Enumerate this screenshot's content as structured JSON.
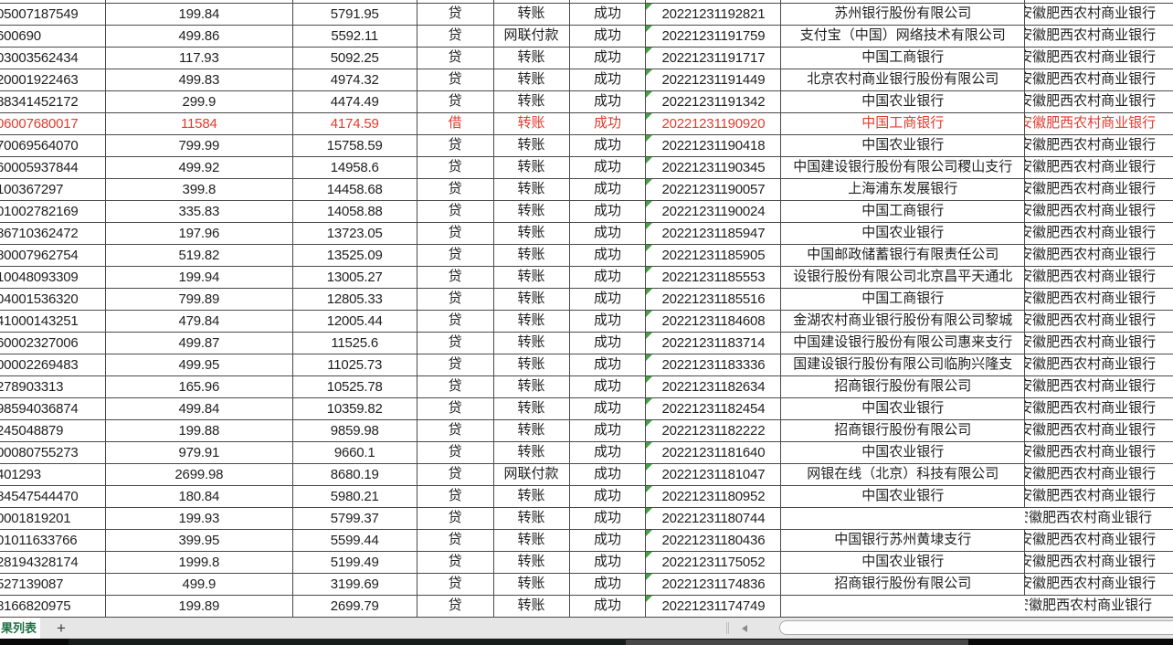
{
  "table": {
    "column_names": [
      "account",
      "amount",
      "balance",
      "debit_credit",
      "tx_type",
      "status",
      "timestamp",
      "counterparty_bank",
      "owner_bank"
    ],
    "owner_bank": "安徽肥西农村商业银行",
    "red_color": "#e23b2e",
    "error_triangle_color": "#44a244",
    "grid_line_color": "#4a4a4a",
    "rows": [
      {
        "account": "05007187549",
        "amount": "199.84",
        "balance": "5791.95",
        "dc": "贷",
        "type": "转账",
        "status": "成功",
        "time": "20221231192821",
        "bank": "苏州银行股份有限公司",
        "red": false
      },
      {
        "account": "600690",
        "amount": "499.86",
        "balance": "5592.11",
        "dc": "贷",
        "type": "网联付款",
        "status": "成功",
        "time": "20221231191759",
        "bank": "支付宝（中国）网络技术有限公司",
        "red": false
      },
      {
        "account": "03003562434",
        "amount": "117.93",
        "balance": "5092.25",
        "dc": "贷",
        "type": "转账",
        "status": "成功",
        "time": "20221231191717",
        "bank": "中国工商银行",
        "red": false
      },
      {
        "account": "20001922463",
        "amount": "499.83",
        "balance": "4974.32",
        "dc": "贷",
        "type": "转账",
        "status": "成功",
        "time": "20221231191449",
        "bank": "北京农村商业银行股份有限公司",
        "red": false
      },
      {
        "account": "88341452172",
        "amount": "299.9",
        "balance": "4474.49",
        "dc": "贷",
        "type": "转账",
        "status": "成功",
        "time": "20221231191342",
        "bank": "中国农业银行",
        "red": false
      },
      {
        "account": "06007680017",
        "amount": "11584",
        "balance": "4174.59",
        "dc": "借",
        "type": "转账",
        "status": "成功",
        "time": "20221231190920",
        "bank": "中国工商银行",
        "red": true
      },
      {
        "account": "70069564070",
        "amount": "799.99",
        "balance": "15758.59",
        "dc": "贷",
        "type": "转账",
        "status": "成功",
        "time": "20221231190418",
        "bank": "中国农业银行",
        "red": false
      },
      {
        "account": "60005937844",
        "amount": "499.92",
        "balance": "14958.6",
        "dc": "贷",
        "type": "转账",
        "status": "成功",
        "time": "20221231190345",
        "bank": "中国建设银行股份有限公司稷山支行",
        "red": false
      },
      {
        "account": "100367297",
        "amount": "399.8",
        "balance": "14458.68",
        "dc": "贷",
        "type": "转账",
        "status": "成功",
        "time": "20221231190057",
        "bank": "上海浦东发展银行",
        "red": false
      },
      {
        "account": "01002782169",
        "amount": "335.83",
        "balance": "14058.88",
        "dc": "贷",
        "type": "转账",
        "status": "成功",
        "time": "20221231190024",
        "bank": "中国工商银行",
        "red": false
      },
      {
        "account": "86710362472",
        "amount": "197.96",
        "balance": "13723.05",
        "dc": "贷",
        "type": "转账",
        "status": "成功",
        "time": "20221231185947",
        "bank": "中国农业银行",
        "red": false
      },
      {
        "account": "80007962754",
        "amount": "519.82",
        "balance": "13525.09",
        "dc": "贷",
        "type": "转账",
        "status": "成功",
        "time": "20221231185905",
        "bank": "中国邮政储蓄银行有限责任公司",
        "red": false
      },
      {
        "account": "10048093309",
        "amount": "199.94",
        "balance": "13005.27",
        "dc": "贷",
        "type": "转账",
        "status": "成功",
        "time": "20221231185553",
        "bank": "设银行股份有限公司北京昌平天通北",
        "red": false
      },
      {
        "account": "04001536320",
        "amount": "799.89",
        "balance": "12805.33",
        "dc": "贷",
        "type": "转账",
        "status": "成功",
        "time": "20221231185516",
        "bank": "中国工商银行",
        "red": false
      },
      {
        "account": "41000143251",
        "amount": "479.84",
        "balance": "12005.44",
        "dc": "贷",
        "type": "转账",
        "status": "成功",
        "time": "20221231184608",
        "bank": "金湖农村商业银行股份有限公司黎城",
        "red": false
      },
      {
        "account": "60002327006",
        "amount": "499.87",
        "balance": "11525.6",
        "dc": "贷",
        "type": "转账",
        "status": "成功",
        "time": "20221231183714",
        "bank": "中国建设银行股份有限公司惠来支行",
        "red": false
      },
      {
        "account": "00002269483",
        "amount": "499.95",
        "balance": "11025.73",
        "dc": "贷",
        "type": "转账",
        "status": "成功",
        "time": "20221231183336",
        "bank": "国建设银行股份有限公司临朐兴隆支",
        "red": false
      },
      {
        "account": "278903313",
        "amount": "165.96",
        "balance": "10525.78",
        "dc": "贷",
        "type": "转账",
        "status": "成功",
        "time": "20221231182634",
        "bank": "招商银行股份有限公司",
        "red": false
      },
      {
        "account": "98594036874",
        "amount": "499.84",
        "balance": "10359.82",
        "dc": "贷",
        "type": "转账",
        "status": "成功",
        "time": "20221231182454",
        "bank": "中国农业银行",
        "red": false
      },
      {
        "account": "245048879",
        "amount": "199.88",
        "balance": "9859.98",
        "dc": "贷",
        "type": "转账",
        "status": "成功",
        "time": "20221231182222",
        "bank": "招商银行股份有限公司",
        "red": false
      },
      {
        "account": "00080755273",
        "amount": "979.91",
        "balance": "9660.1",
        "dc": "贷",
        "type": "转账",
        "status": "成功",
        "time": "20221231181640",
        "bank": "中国农业银行",
        "red": false
      },
      {
        "account": "401293",
        "amount": "2699.98",
        "balance": "8680.19",
        "dc": "贷",
        "type": "网联付款",
        "status": "成功",
        "time": "20221231181047",
        "bank": "网银在线（北京）科技有限公司",
        "red": false
      },
      {
        "account": "84547544470",
        "amount": "180.84",
        "balance": "5980.21",
        "dc": "贷",
        "type": "转账",
        "status": "成功",
        "time": "20221231180952",
        "bank": "中国农业银行",
        "red": false
      },
      {
        "account": "0001819201",
        "amount": "199.93",
        "balance": "5799.37",
        "dc": "贷",
        "type": "转账",
        "status": "成功",
        "time": "20221231180744",
        "bank": "",
        "red": false
      },
      {
        "account": "01011633766",
        "amount": "399.95",
        "balance": "5599.44",
        "dc": "贷",
        "type": "转账",
        "status": "成功",
        "time": "20221231180436",
        "bank": "中国银行苏州黄埭支行",
        "red": false
      },
      {
        "account": "28194328174",
        "amount": "1999.8",
        "balance": "5199.49",
        "dc": "贷",
        "type": "转账",
        "status": "成功",
        "time": "20221231175052",
        "bank": "中国农业银行",
        "red": false
      },
      {
        "account": "527139087",
        "amount": "499.9",
        "balance": "3199.69",
        "dc": "贷",
        "type": "转账",
        "status": "成功",
        "time": "20221231174836",
        "bank": "招商银行股份有限公司",
        "red": false
      },
      {
        "account": "8166820975",
        "amount": "199.89",
        "balance": "2699.79",
        "dc": "贷",
        "type": "转账",
        "status": "成功",
        "time": "20221231174749",
        "bank": "",
        "red": false
      }
    ]
  },
  "sheet_bar": {
    "tab_label": "果列表",
    "add_sheet_label": "+",
    "tab_text_color": "#1d7044"
  }
}
